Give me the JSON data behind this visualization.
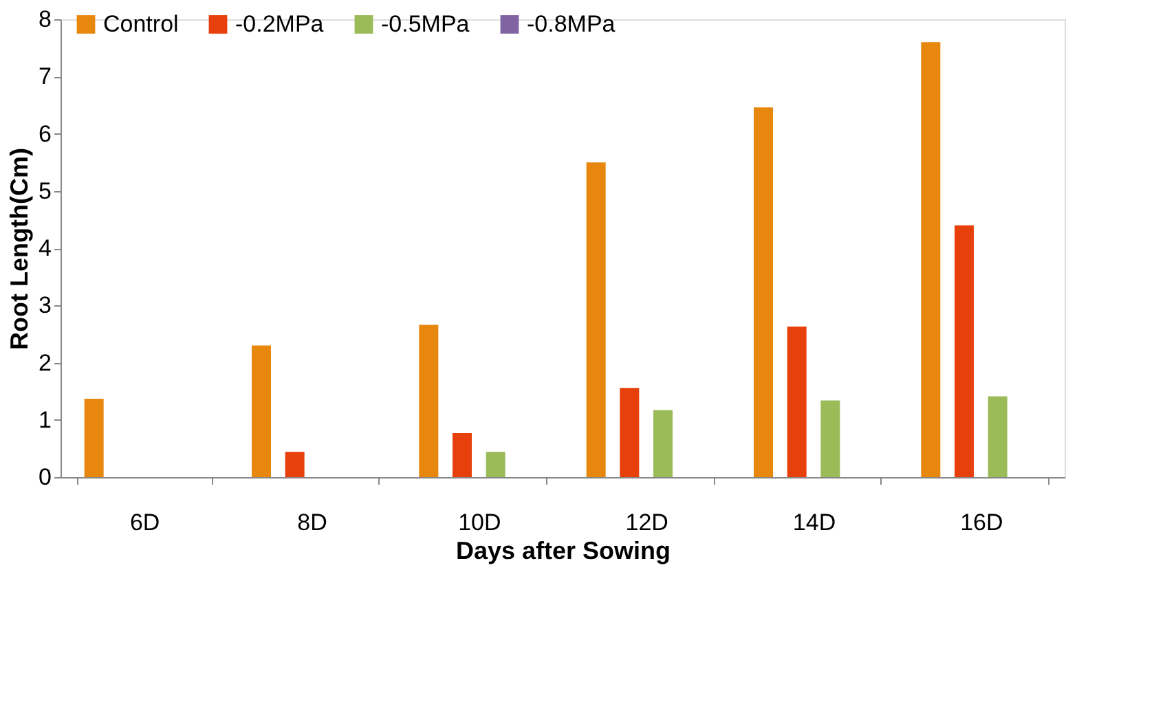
{
  "chart_data": {
    "type": "bar",
    "xlabel": "Days after Sowing",
    "ylabel": "Root Length(Cm)",
    "categories": [
      "6D",
      "8D",
      "10D",
      "12D",
      "14D",
      "16D"
    ],
    "series": [
      {
        "name": "Control",
        "color": "#e8870e",
        "values": [
          1.37,
          2.3,
          2.66,
          5.5,
          6.46,
          7.6
        ]
      },
      {
        "name": "-0.2MPa",
        "color": "#e8400c",
        "values": [
          0,
          0.44,
          0.77,
          1.56,
          2.63,
          4.4
        ]
      },
      {
        "name": "-0.5MPa",
        "color": "#9bbb59",
        "values": [
          0,
          0,
          0.44,
          1.17,
          1.34,
          1.41
        ]
      },
      {
        "name": "-0.8MPa",
        "color": "#8064a2",
        "values": [
          0,
          0,
          0,
          0,
          0,
          0
        ]
      }
    ],
    "ylim": [
      0,
      8
    ],
    "yticks": [
      0,
      1,
      2,
      3,
      4,
      5,
      6,
      7,
      8
    ],
    "grid": false,
    "legend": "top"
  }
}
